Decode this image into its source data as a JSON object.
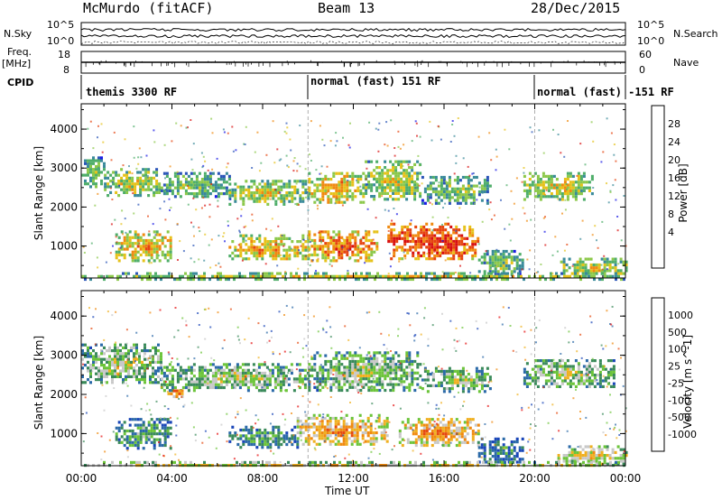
{
  "header": {
    "station": "McMurdo (fitACF)",
    "beam": "Beam 13",
    "date": "28/Dec/2015"
  },
  "strip_labels": {
    "nsky": "N.Sky",
    "freq": "Freq.",
    "freq_unit": "[MHz]",
    "cpid": "CPID",
    "nsearch": "N.Search",
    "nave": "Nave"
  },
  "strip_ticks": {
    "noise_top": "10^5",
    "noise_bottom": "10^0",
    "freq_top": "18",
    "freq_bottom": "8",
    "nave_top": "60",
    "nave_bottom": "0"
  },
  "cpid_segments": [
    {
      "label": "themis 3300 RF",
      "start_hour": 0
    },
    {
      "label": "normal (fast) 151 RF",
      "start_hour": 10
    },
    {
      "label": "normal (fast) -151 RF",
      "start_hour": 20
    }
  ],
  "chart_data": [
    {
      "type": "heatmap",
      "parameter": "Power",
      "colorbar_label": "Power [dB]",
      "colorbar_ticks": [
        "28",
        "24",
        "20",
        "16",
        "12",
        "8",
        "4"
      ],
      "colors": [
        "#1a1ae6",
        "#2b55b8",
        "#3a8a9a",
        "#4fae6a",
        "#8cc84a",
        "#e6c21a",
        "#f08a10",
        "#e64410",
        "#d81010"
      ],
      "ylabel": "Slant Range [km]",
      "yticks": [
        "4000",
        "3000",
        "2000",
        "1000"
      ],
      "ylim": [
        180,
        4650
      ],
      "xlim_hours": [
        0,
        24
      ],
      "echo_regions": [
        {
          "h0": 0.0,
          "h1": 1.0,
          "r0": 2500,
          "r1": 3300,
          "level": 4
        },
        {
          "h0": 1.0,
          "h1": 3.5,
          "r0": 2300,
          "r1": 3000,
          "level": 5
        },
        {
          "h0": 3.5,
          "h1": 6.5,
          "r0": 2300,
          "r1": 2900,
          "level": 4
        },
        {
          "h0": 6.5,
          "h1": 10.0,
          "r0": 2100,
          "r1": 2700,
          "level": 5
        },
        {
          "h0": 10.0,
          "h1": 12.5,
          "r0": 2100,
          "r1": 2900,
          "level": 6
        },
        {
          "h0": 12.5,
          "h1": 15.0,
          "r0": 2200,
          "r1": 3200,
          "level": 5
        },
        {
          "h0": 15.0,
          "h1": 18.0,
          "r0": 2100,
          "r1": 2800,
          "level": 4
        },
        {
          "h0": 19.5,
          "h1": 22.5,
          "r0": 2200,
          "r1": 2900,
          "level": 5
        },
        {
          "h0": 1.5,
          "h1": 4.0,
          "r0": 650,
          "r1": 1400,
          "level": 6
        },
        {
          "h0": 6.5,
          "h1": 10.0,
          "r0": 650,
          "r1": 1300,
          "level": 6
        },
        {
          "h0": 10.0,
          "h1": 13.0,
          "r0": 650,
          "r1": 1400,
          "level": 7
        },
        {
          "h0": 13.5,
          "h1": 17.5,
          "r0": 700,
          "r1": 1600,
          "level": 8
        },
        {
          "h0": 17.5,
          "h1": 19.5,
          "r0": 300,
          "r1": 900,
          "level": 4
        },
        {
          "h0": 21.0,
          "h1": 24.0,
          "r0": 200,
          "r1": 700,
          "level": 5
        },
        {
          "h0": 0.0,
          "h1": 24.0,
          "r0": 180,
          "r1": 330,
          "level": 5
        }
      ]
    },
    {
      "type": "heatmap",
      "parameter": "Velocity",
      "colorbar_label": "Velocity [m s^-1]",
      "colorbar_ticks": [
        "1000",
        "500",
        "100",
        "25",
        "-25",
        "-100",
        "-500",
        "-1000"
      ],
      "colors": [
        "#1a46b8",
        "#2b6aa8",
        "#3a8a5a",
        "#6cc43a",
        "#c8c8c8",
        "#f0b020",
        "#f08a10",
        "#e64a10",
        "#e61010"
      ],
      "ylabel": "Slant Range [km]",
      "yticks": [
        "4000",
        "3000",
        "2000",
        "1000"
      ],
      "ylim": [
        180,
        4650
      ],
      "xlabel": "Time UT",
      "xticks": [
        "00:00",
        "04:00",
        "08:00",
        "12:00",
        "16:00",
        "20:00",
        "00:00"
      ],
      "xlim_hours": [
        0,
        24
      ],
      "echo_regions": [
        {
          "h0": 0.0,
          "h1": 3.5,
          "r0": 2300,
          "r1": 3300,
          "level": 4
        },
        {
          "h0": 3.5,
          "h1": 10.0,
          "r0": 2100,
          "r1": 2800,
          "level": 4
        },
        {
          "h0": 10.0,
          "h1": 15.0,
          "r0": 2100,
          "r1": 3100,
          "level": 4
        },
        {
          "h0": 15.0,
          "h1": 18.0,
          "r0": 2100,
          "r1": 2700,
          "level": 4
        },
        {
          "h0": 19.5,
          "h1": 23.5,
          "r0": 2200,
          "r1": 2900,
          "level": 4
        },
        {
          "h0": 1.5,
          "h1": 4.0,
          "r0": 650,
          "r1": 1400,
          "level": 3
        },
        {
          "h0": 6.5,
          "h1": 9.5,
          "r0": 650,
          "r1": 1200,
          "level": 3
        },
        {
          "h0": 9.5,
          "h1": 13.5,
          "r0": 700,
          "r1": 1500,
          "level": 6
        },
        {
          "h0": 14.0,
          "h1": 17.5,
          "r0": 700,
          "r1": 1400,
          "level": 6
        },
        {
          "h0": 17.5,
          "h1": 19.5,
          "r0": 250,
          "r1": 900,
          "level": 2
        },
        {
          "h0": 21.0,
          "h1": 24.0,
          "r0": 200,
          "r1": 700,
          "level": 5
        },
        {
          "h0": 0.0,
          "h1": 24.0,
          "r0": 180,
          "r1": 300,
          "level": 5
        },
        {
          "h0": 3.8,
          "h1": 4.6,
          "r0": 1950,
          "r1": 2200,
          "level": 7
        }
      ]
    }
  ]
}
